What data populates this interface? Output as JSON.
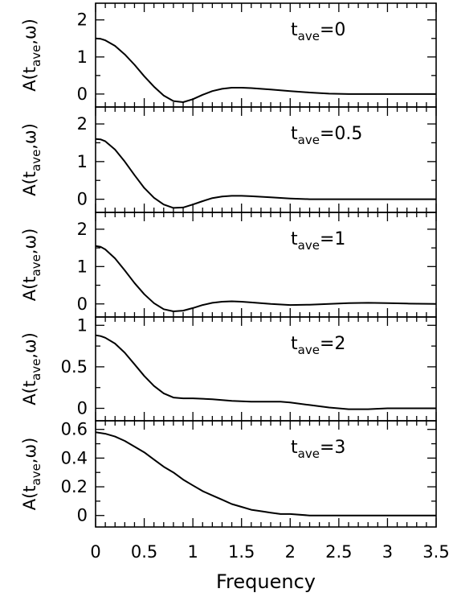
{
  "chart_data": {
    "type": "line",
    "xlabel": "Frequency",
    "xlim": [
      0,
      3.5
    ],
    "x_ticks": [
      "0",
      "0.5",
      "1",
      "1.5",
      "2",
      "2.5",
      "3",
      "3.5"
    ],
    "grid": false,
    "panels": [
      {
        "ylabel": {
          "pre": "A(t",
          "sub": "ave",
          "post": ",ω)"
        },
        "annotation": {
          "pre": "t",
          "sub": "ave",
          "post": "=0"
        },
        "ylim": [
          -0.35,
          2.45
        ],
        "y_ticks": [
          {
            "value": 0,
            "label": "0"
          },
          {
            "value": 1,
            "label": "1"
          },
          {
            "value": 2,
            "label": "2"
          }
        ],
        "x": [
          0,
          0.05,
          0.1,
          0.2,
          0.3,
          0.4,
          0.5,
          0.6,
          0.7,
          0.8,
          0.9,
          1.0,
          1.1,
          1.2,
          1.3,
          1.4,
          1.5,
          1.6,
          1.7,
          1.8,
          1.9,
          2.0,
          2.2,
          2.4,
          2.6,
          2.8,
          3.0,
          3.2,
          3.5
        ],
        "y": [
          1.5,
          1.49,
          1.45,
          1.3,
          1.07,
          0.79,
          0.48,
          0.2,
          -0.04,
          -0.19,
          -0.22,
          -0.14,
          -0.02,
          0.08,
          0.14,
          0.17,
          0.17,
          0.16,
          0.14,
          0.12,
          0.1,
          0.08,
          0.04,
          0.01,
          0.0,
          0.0,
          0.0,
          0.0,
          0.0
        ]
      },
      {
        "ylabel": {
          "pre": "A(t",
          "sub": "ave",
          "post": ",ω)"
        },
        "annotation": {
          "pre": "t",
          "sub": "ave",
          "post": "=0.5"
        },
        "ylim": [
          -0.35,
          2.45
        ],
        "y_ticks": [
          {
            "value": 0,
            "label": "0"
          },
          {
            "value": 1,
            "label": "1"
          },
          {
            "value": 2,
            "label": "2"
          }
        ],
        "x": [
          0,
          0.05,
          0.1,
          0.2,
          0.3,
          0.4,
          0.5,
          0.6,
          0.7,
          0.8,
          0.9,
          1.0,
          1.1,
          1.2,
          1.3,
          1.4,
          1.5,
          1.6,
          1.8,
          2.0,
          2.2,
          2.4,
          2.6,
          2.8,
          3.0,
          3.2,
          3.5
        ],
        "y": [
          1.6,
          1.59,
          1.54,
          1.32,
          1.0,
          0.64,
          0.3,
          0.04,
          -0.14,
          -0.23,
          -0.22,
          -0.14,
          -0.05,
          0.03,
          0.07,
          0.09,
          0.09,
          0.08,
          0.05,
          0.02,
          0.0,
          0.0,
          0.0,
          0.0,
          0.0,
          0.0,
          0.0
        ]
      },
      {
        "ylabel": {
          "pre": "A(t",
          "sub": "ave",
          "post": ",ω)"
        },
        "annotation": {
          "pre": "t",
          "sub": "ave",
          "post": "=1"
        },
        "ylim": [
          -0.35,
          2.45
        ],
        "y_ticks": [
          {
            "value": 0,
            "label": "0"
          },
          {
            "value": 1,
            "label": "1"
          },
          {
            "value": 2,
            "label": "2"
          }
        ],
        "x": [
          0,
          0.05,
          0.1,
          0.2,
          0.3,
          0.4,
          0.5,
          0.6,
          0.7,
          0.8,
          0.9,
          1.0,
          1.1,
          1.2,
          1.3,
          1.4,
          1.5,
          1.6,
          1.8,
          2.0,
          2.2,
          2.4,
          2.6,
          2.8,
          3.0,
          3.2,
          3.5
        ],
        "y": [
          1.55,
          1.53,
          1.46,
          1.22,
          0.9,
          0.56,
          0.26,
          0.02,
          -0.14,
          -0.2,
          -0.18,
          -0.11,
          -0.03,
          0.03,
          0.06,
          0.07,
          0.06,
          0.04,
          0.0,
          -0.03,
          -0.02,
          0.0,
          0.02,
          0.03,
          0.02,
          0.01,
          0.0
        ]
      },
      {
        "ylabel": {
          "pre": "A(t",
          "sub": "ave",
          "post": ",ω)"
        },
        "annotation": {
          "pre": "t",
          "sub": "ave",
          "post": "=2"
        },
        "ylim": [
          -0.15,
          1.1
        ],
        "y_ticks": [
          {
            "value": 0,
            "label": "0"
          },
          {
            "value": 0.5,
            "label": "0.5"
          },
          {
            "value": 1,
            "label": "1"
          }
        ],
        "x": [
          0,
          0.05,
          0.1,
          0.2,
          0.3,
          0.4,
          0.5,
          0.6,
          0.7,
          0.8,
          0.9,
          1.0,
          1.2,
          1.4,
          1.6,
          1.8,
          1.9,
          2.0,
          2.2,
          2.4,
          2.6,
          2.8,
          3.0,
          3.2,
          3.5
        ],
        "y": [
          0.88,
          0.87,
          0.85,
          0.78,
          0.67,
          0.53,
          0.39,
          0.27,
          0.18,
          0.13,
          0.12,
          0.12,
          0.11,
          0.09,
          0.08,
          0.08,
          0.08,
          0.07,
          0.04,
          0.01,
          -0.01,
          -0.01,
          0.0,
          0.0,
          0.0
        ]
      },
      {
        "ylabel": {
          "pre": "A(t",
          "sub": "ave",
          "post": ",ω)"
        },
        "annotation": {
          "pre": "t",
          "sub": "ave",
          "post": "=3"
        },
        "ylim": [
          -0.08,
          0.66
        ],
        "y_ticks": [
          {
            "value": 0,
            "label": "0"
          },
          {
            "value": 0.2,
            "label": "0.2"
          },
          {
            "value": 0.4,
            "label": "0.4"
          },
          {
            "value": 0.6,
            "label": "0.6"
          }
        ],
        "x": [
          0,
          0.1,
          0.2,
          0.3,
          0.4,
          0.5,
          0.6,
          0.7,
          0.8,
          0.9,
          1.0,
          1.1,
          1.2,
          1.3,
          1.4,
          1.5,
          1.6,
          1.7,
          1.8,
          1.9,
          2.0,
          2.2,
          2.4,
          2.6,
          2.8,
          3.0,
          3.2,
          3.5
        ],
        "y": [
          0.58,
          0.57,
          0.55,
          0.52,
          0.48,
          0.44,
          0.39,
          0.34,
          0.3,
          0.25,
          0.21,
          0.17,
          0.14,
          0.11,
          0.08,
          0.06,
          0.04,
          0.03,
          0.02,
          0.01,
          0.01,
          0.0,
          0.0,
          0.0,
          0.0,
          0.0,
          0.0,
          0.0
        ]
      }
    ]
  }
}
